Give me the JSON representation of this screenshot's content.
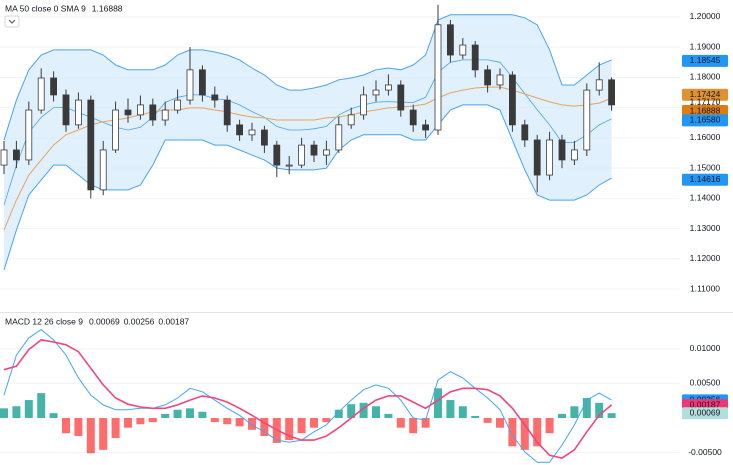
{
  "chart_data": [
    {
      "type": "candlestick",
      "title": "MA 50 close 0 SMA 9",
      "legend_value": {
        "value": 1.16888,
        "label": "1.16888"
      },
      "ma_color": "#e8a35c",
      "band_color": "#4aa3ec",
      "band_fill": "#d6ebfb",
      "up_color": "#ffffff",
      "down_color": "#3a3a3a",
      "wick_color": "#3a3a3a",
      "open": [
        1.151,
        1.156,
        1.1527,
        1.1692,
        1.1798,
        1.1742,
        1.1643,
        1.1725,
        1.1428,
        1.156,
        1.1692,
        1.1676,
        1.1709,
        1.1659,
        1.1692,
        1.1725,
        1.1825,
        1.1742,
        1.1725,
        1.1643,
        1.161,
        1.1626,
        1.1576,
        1.151,
        1.151,
        1.1576,
        1.1543,
        1.156,
        1.1643,
        1.1676,
        1.1742,
        1.1758,
        1.1775,
        1.1692,
        1.1643,
        1.1626,
        1.1974,
        1.1874,
        1.1907,
        1.1825,
        1.1775,
        1.1808,
        1.1643,
        1.1593,
        1.1477,
        1.1593,
        1.1527,
        1.156,
        1.1758,
        1.1792
      ],
      "high": [
        1.159,
        1.159,
        1.172,
        1.183,
        1.182,
        1.176,
        1.175,
        1.174,
        1.159,
        1.172,
        1.173,
        1.174,
        1.173,
        1.172,
        1.176,
        1.19,
        1.184,
        1.177,
        1.174,
        1.166,
        1.165,
        1.164,
        1.159,
        1.154,
        1.16,
        1.159,
        1.159,
        1.167,
        1.17,
        1.177,
        1.179,
        1.181,
        1.179,
        1.171,
        1.166,
        1.204,
        1.199,
        1.193,
        1.192,
        1.184,
        1.183,
        1.182,
        1.166,
        1.161,
        1.162,
        1.161,
        1.159,
        1.178,
        1.185,
        1.18
      ],
      "low": [
        1.148,
        1.15,
        1.151,
        1.168,
        1.172,
        1.162,
        1.163,
        1.14,
        1.141,
        1.155,
        1.165,
        1.166,
        1.164,
        1.164,
        1.168,
        1.171,
        1.172,
        1.17,
        1.162,
        1.159,
        1.159,
        1.155,
        1.147,
        1.148,
        1.15,
        1.152,
        1.151,
        1.155,
        1.163,
        1.166,
        1.172,
        1.174,
        1.167,
        1.162,
        1.16,
        1.161,
        1.185,
        1.186,
        1.18,
        1.175,
        1.176,
        1.162,
        1.157,
        1.142,
        1.146,
        1.15,
        1.151,
        1.154,
        1.174,
        1.169
      ],
      "close": [
        1.156,
        1.1527,
        1.1692,
        1.1798,
        1.1742,
        1.1643,
        1.1725,
        1.1428,
        1.156,
        1.1692,
        1.1676,
        1.1709,
        1.1659,
        1.1692,
        1.1725,
        1.1825,
        1.1742,
        1.1725,
        1.1643,
        1.161,
        1.1626,
        1.1576,
        1.151,
        1.151,
        1.1576,
        1.1543,
        1.156,
        1.1643,
        1.1676,
        1.1742,
        1.1758,
        1.1775,
        1.1692,
        1.1643,
        1.1626,
        1.1974,
        1.1874,
        1.1907,
        1.1825,
        1.1775,
        1.1808,
        1.1643,
        1.1593,
        1.1477,
        1.1593,
        1.1527,
        1.156,
        1.1758,
        1.1792,
        1.1709
      ],
      "bb_upper": [
        1.1593,
        1.1725,
        1.1825,
        1.1874,
        1.1891,
        1.1891,
        1.1891,
        1.1891,
        1.1874,
        1.1841,
        1.1825,
        1.1825,
        1.1825,
        1.1841,
        1.1874,
        1.1891,
        1.1891,
        1.1884,
        1.1874,
        1.1858,
        1.1831,
        1.1808,
        1.1775,
        1.1758,
        1.1758,
        1.1765,
        1.1775,
        1.1792,
        1.1798,
        1.1808,
        1.1825,
        1.1831,
        1.1825,
        1.1841,
        1.1874,
        1.199,
        1.2007,
        1.2007,
        1.2007,
        1.2007,
        1.2007,
        1.2007,
        1.1997,
        1.1974,
        1.1891,
        1.1775,
        1.1775,
        1.1808,
        1.1841,
        1.1858
      ],
      "bb_middle": [
        1.1378,
        1.151,
        1.1618,
        1.1668,
        1.17,
        1.17,
        1.1684,
        1.1668,
        1.1651,
        1.1635,
        1.1626,
        1.1635,
        1.1668,
        1.1717,
        1.1734,
        1.1742,
        1.1742,
        1.173,
        1.1725,
        1.1709,
        1.1687,
        1.1668,
        1.1638,
        1.1626,
        1.1626,
        1.163,
        1.1638,
        1.1676,
        1.1696,
        1.1709,
        1.1718,
        1.172,
        1.1718,
        1.1717,
        1.1734,
        1.1817,
        1.185,
        1.1858,
        1.1858,
        1.1858,
        1.185,
        1.18,
        1.1746,
        1.1693,
        1.1643,
        1.1585,
        1.1585,
        1.161,
        1.1643,
        1.1663
      ],
      "bb_lower": [
        1.1163,
        1.1295,
        1.1411,
        1.1461,
        1.151,
        1.151,
        1.1477,
        1.1444,
        1.1428,
        1.1428,
        1.1428,
        1.1444,
        1.151,
        1.1593,
        1.1593,
        1.1593,
        1.1593,
        1.1576,
        1.1576,
        1.156,
        1.1543,
        1.1527,
        1.15,
        1.1494,
        1.1494,
        1.1494,
        1.15,
        1.156,
        1.1593,
        1.161,
        1.161,
        1.161,
        1.161,
        1.1593,
        1.1593,
        1.1643,
        1.1692,
        1.1709,
        1.1709,
        1.1709,
        1.1692,
        1.1593,
        1.1494,
        1.1411,
        1.1394,
        1.1394,
        1.1394,
        1.1411,
        1.1444,
        1.1467
      ],
      "ma": [
        1.1295,
        1.1394,
        1.1477,
        1.1527,
        1.1576,
        1.161,
        1.1626,
        1.1643,
        1.1653,
        1.1659,
        1.1666,
        1.1676,
        1.1686,
        1.1692,
        1.1692,
        1.1699,
        1.1699,
        1.1692,
        1.1686,
        1.1676,
        1.1669,
        1.1666,
        1.1659,
        1.1659,
        1.1659,
        1.1659,
        1.1666,
        1.1669,
        1.1676,
        1.1686,
        1.1692,
        1.1699,
        1.1702,
        1.1705,
        1.1712,
        1.1732,
        1.1749,
        1.1758,
        1.1765,
        1.1768,
        1.1768,
        1.1758,
        1.1745,
        1.1732,
        1.1719,
        1.1709,
        1.1705,
        1.1709,
        1.1715,
        1.1732
      ],
      "ylim": [
        1.1024,
        1.2056
      ],
      "yticks": [
        {
          "value": 1.11,
          "label": "1.11000"
        },
        {
          "value": 1.12,
          "label": "1.12000"
        },
        {
          "value": 1.13,
          "label": "1.13000"
        },
        {
          "value": 1.14,
          "label": "1.14000"
        },
        {
          "value": 1.15,
          "label": "1.15000"
        },
        {
          "value": 1.16,
          "label": "1.16000"
        },
        {
          "value": 1.17,
          "label": "1.17000"
        },
        {
          "value": 1.18,
          "label": "1.18000"
        },
        {
          "value": 1.19,
          "label": "1.19000"
        },
        {
          "value": 1.2,
          "label": "1.20000"
        }
      ],
      "grid": true,
      "price_labels": [
        {
          "value": 1.18545,
          "label": "1.18545",
          "color": "#2196f3"
        },
        {
          "value": 1.17424,
          "label": "1.17424",
          "color": "#e09232"
        },
        {
          "value": 1.1717,
          "label": "1.17170"
        },
        {
          "value": 1.16888,
          "label": "1.16888",
          "color": "#e07d10"
        },
        {
          "value": 1.1658,
          "label": "1.16580",
          "color": "#2196f3"
        },
        {
          "value": 1.14616,
          "label": "1.14616",
          "color": "#2196f3"
        }
      ]
    },
    {
      "type": "macd",
      "title": "MACD 12 26 close 9",
      "legend_values": [
        {
          "value": 0.00069,
          "label": "0.00069",
          "color": "#a5d6d2"
        },
        {
          "value": 0.00256,
          "label": "0.00256",
          "color": "#2196f3"
        },
        {
          "value": 0.00187,
          "label": "0.00187",
          "color": "#f23674"
        }
      ],
      "macd_color": "#42a5f5",
      "signal_color": "#f0457e",
      "hist_up_color": "#26a69a",
      "hist_down_color": "#ff5252",
      "histogram": [
        0.0014,
        0.0017,
        0.0026,
        0.0036,
        0.0007,
        -0.0022,
        -0.0026,
        -0.0051,
        -0.0046,
        -0.0029,
        -0.0014,
        -0.0009,
        -0.0006,
        0.0006,
        0.0012,
        0.0014,
        0.0009,
        -0.0006,
        -0.0009,
        -0.0012,
        -0.0017,
        -0.0026,
        -0.0036,
        -0.0032,
        -0.0022,
        -0.0014,
        -0.0006,
        0.0012,
        0.002,
        0.0022,
        0.0017,
        0.0006,
        -0.0014,
        -0.0022,
        -0.0014,
        0.0043,
        0.0026,
        0.0017,
        0.0003,
        -0.0007,
        -0.0014,
        -0.0041,
        -0.0046,
        -0.0041,
        -0.0022,
        0.0006,
        0.0017,
        0.0029,
        0.0022,
        0.0007
      ],
      "macd": [
        0.0033,
        0.0091,
        0.0116,
        0.0128,
        0.0113,
        0.0091,
        0.0058,
        0.0033,
        0.0019,
        0.0012,
        0.0012,
        0.0014,
        0.0014,
        0.0019,
        0.0029,
        0.0043,
        0.0038,
        0.0026,
        0.0014,
        0.0004,
        -0.001,
        -0.002,
        -0.0032,
        -0.0035,
        -0.0032,
        -0.002,
        -0.001,
        0.0009,
        0.0026,
        0.0041,
        0.0048,
        0.0043,
        0.0026,
        0.0,
        -0.0003,
        0.0055,
        0.0067,
        0.0058,
        0.0043,
        0.0029,
        0.0012,
        -0.0025,
        -0.0049,
        -0.0064,
        -0.0064,
        -0.0039,
        -0.001,
        0.0026,
        0.0036,
        0.0026
      ],
      "signal": [
        0.007,
        0.0075,
        0.0099,
        0.0113,
        0.011,
        0.0106,
        0.0096,
        0.0072,
        0.0048,
        0.0029,
        0.002,
        0.0016,
        0.0014,
        0.0014,
        0.0019,
        0.0026,
        0.0032,
        0.0029,
        0.0023,
        0.0014,
        0.0004,
        -0.0007,
        -0.0017,
        -0.0026,
        -0.0032,
        -0.0032,
        -0.0026,
        -0.0014,
        0.0,
        0.0014,
        0.0026,
        0.0032,
        0.0032,
        0.0023,
        0.0014,
        0.0026,
        0.0038,
        0.0043,
        0.0043,
        0.0041,
        0.0032,
        0.0014,
        -0.001,
        -0.0035,
        -0.0054,
        -0.0058,
        -0.0046,
        -0.002,
        0.0004,
        0.0019
      ],
      "ylim": [
        -0.0068,
        0.0152
      ],
      "yticks": [
        {
          "value": -0.005,
          "label": "-0.00500"
        },
        {
          "value": 0.005,
          "label": "0.00500"
        },
        {
          "value": 0.01,
          "label": "0.01000"
        }
      ],
      "grid": true,
      "price_labels": [
        {
          "value": 0.00256,
          "label": "0.00256",
          "color": "#2196f3"
        },
        {
          "value": 0.00187,
          "label": "0.00187",
          "color": "#f23674"
        },
        {
          "value": 0.00069,
          "label": "0.00069",
          "color": "#b2dfdb",
          "text_color": "#131722"
        }
      ]
    }
  ]
}
